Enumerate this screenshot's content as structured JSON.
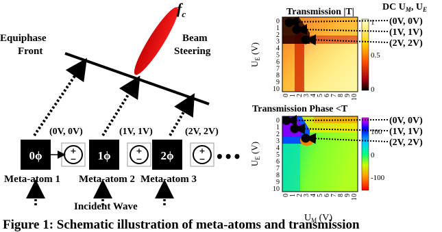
{
  "diagram": {
    "labels": {
      "frequency": "f",
      "frequency_sub": "c",
      "beam_steering_1": "Beam",
      "beam_steering_2": "Steering",
      "equiphase_1": "Equiphase",
      "equiphase_2": "Front",
      "incident_wave": "Incident Wave"
    },
    "meta_atoms": [
      {
        "phase": "0ϕ",
        "name": "Meta-atom 1",
        "bias": "(0V, 0V)"
      },
      {
        "phase": "1ϕ",
        "name": "Meta-atom 2",
        "bias": "(1V, 1V)"
      },
      {
        "phase": "2ϕ",
        "name": "Meta-atom 3",
        "bias": "(2V, 2V)"
      }
    ],
    "ellipsis": "•••"
  },
  "maps": {
    "dc_header": "DC U",
    "dc_header_m": "M",
    "dc_header_sep": ", U",
    "dc_header_e": "E",
    "magnitude": {
      "title": "Transmission |T|",
      "colorbar_ticks": [
        "1",
        "0.5",
        "0"
      ],
      "colors": [
        "#000000",
        "#a0000a",
        "#ff3000",
        "#ff9a00",
        "#ffe060",
        "#ffffd0"
      ]
    },
    "phase": {
      "title": "Transmission Phase <T",
      "colorbar_ticks": [
        "100",
        "0",
        "-100"
      ],
      "colors": [
        "#ff00ff",
        "#0000ff",
        "#00c8ff",
        "#00ff80",
        "#c8ff00",
        "#ffff00",
        "#ff8000",
        "#ff0000"
      ]
    },
    "x_ticks": [
      "0",
      "1",
      "2",
      "3",
      "4",
      "5",
      "6",
      "7",
      "8",
      "9",
      "10"
    ],
    "y_ticks": [
      "0",
      "1",
      "2",
      "3",
      "4",
      "5",
      "6",
      "7",
      "8",
      "9",
      "10"
    ],
    "y_label": "U",
    "y_label_sub": "E",
    "y_unit": " (V)",
    "x_label": "U",
    "x_label_sub": "M",
    "x_unit": " (V)",
    "annotations": [
      "(0V, 0V)",
      "(1V, 1V)",
      "(2V, 2V)"
    ]
  },
  "caption": "Figure 1: Schematic illustration of meta-atoms and transmission"
}
